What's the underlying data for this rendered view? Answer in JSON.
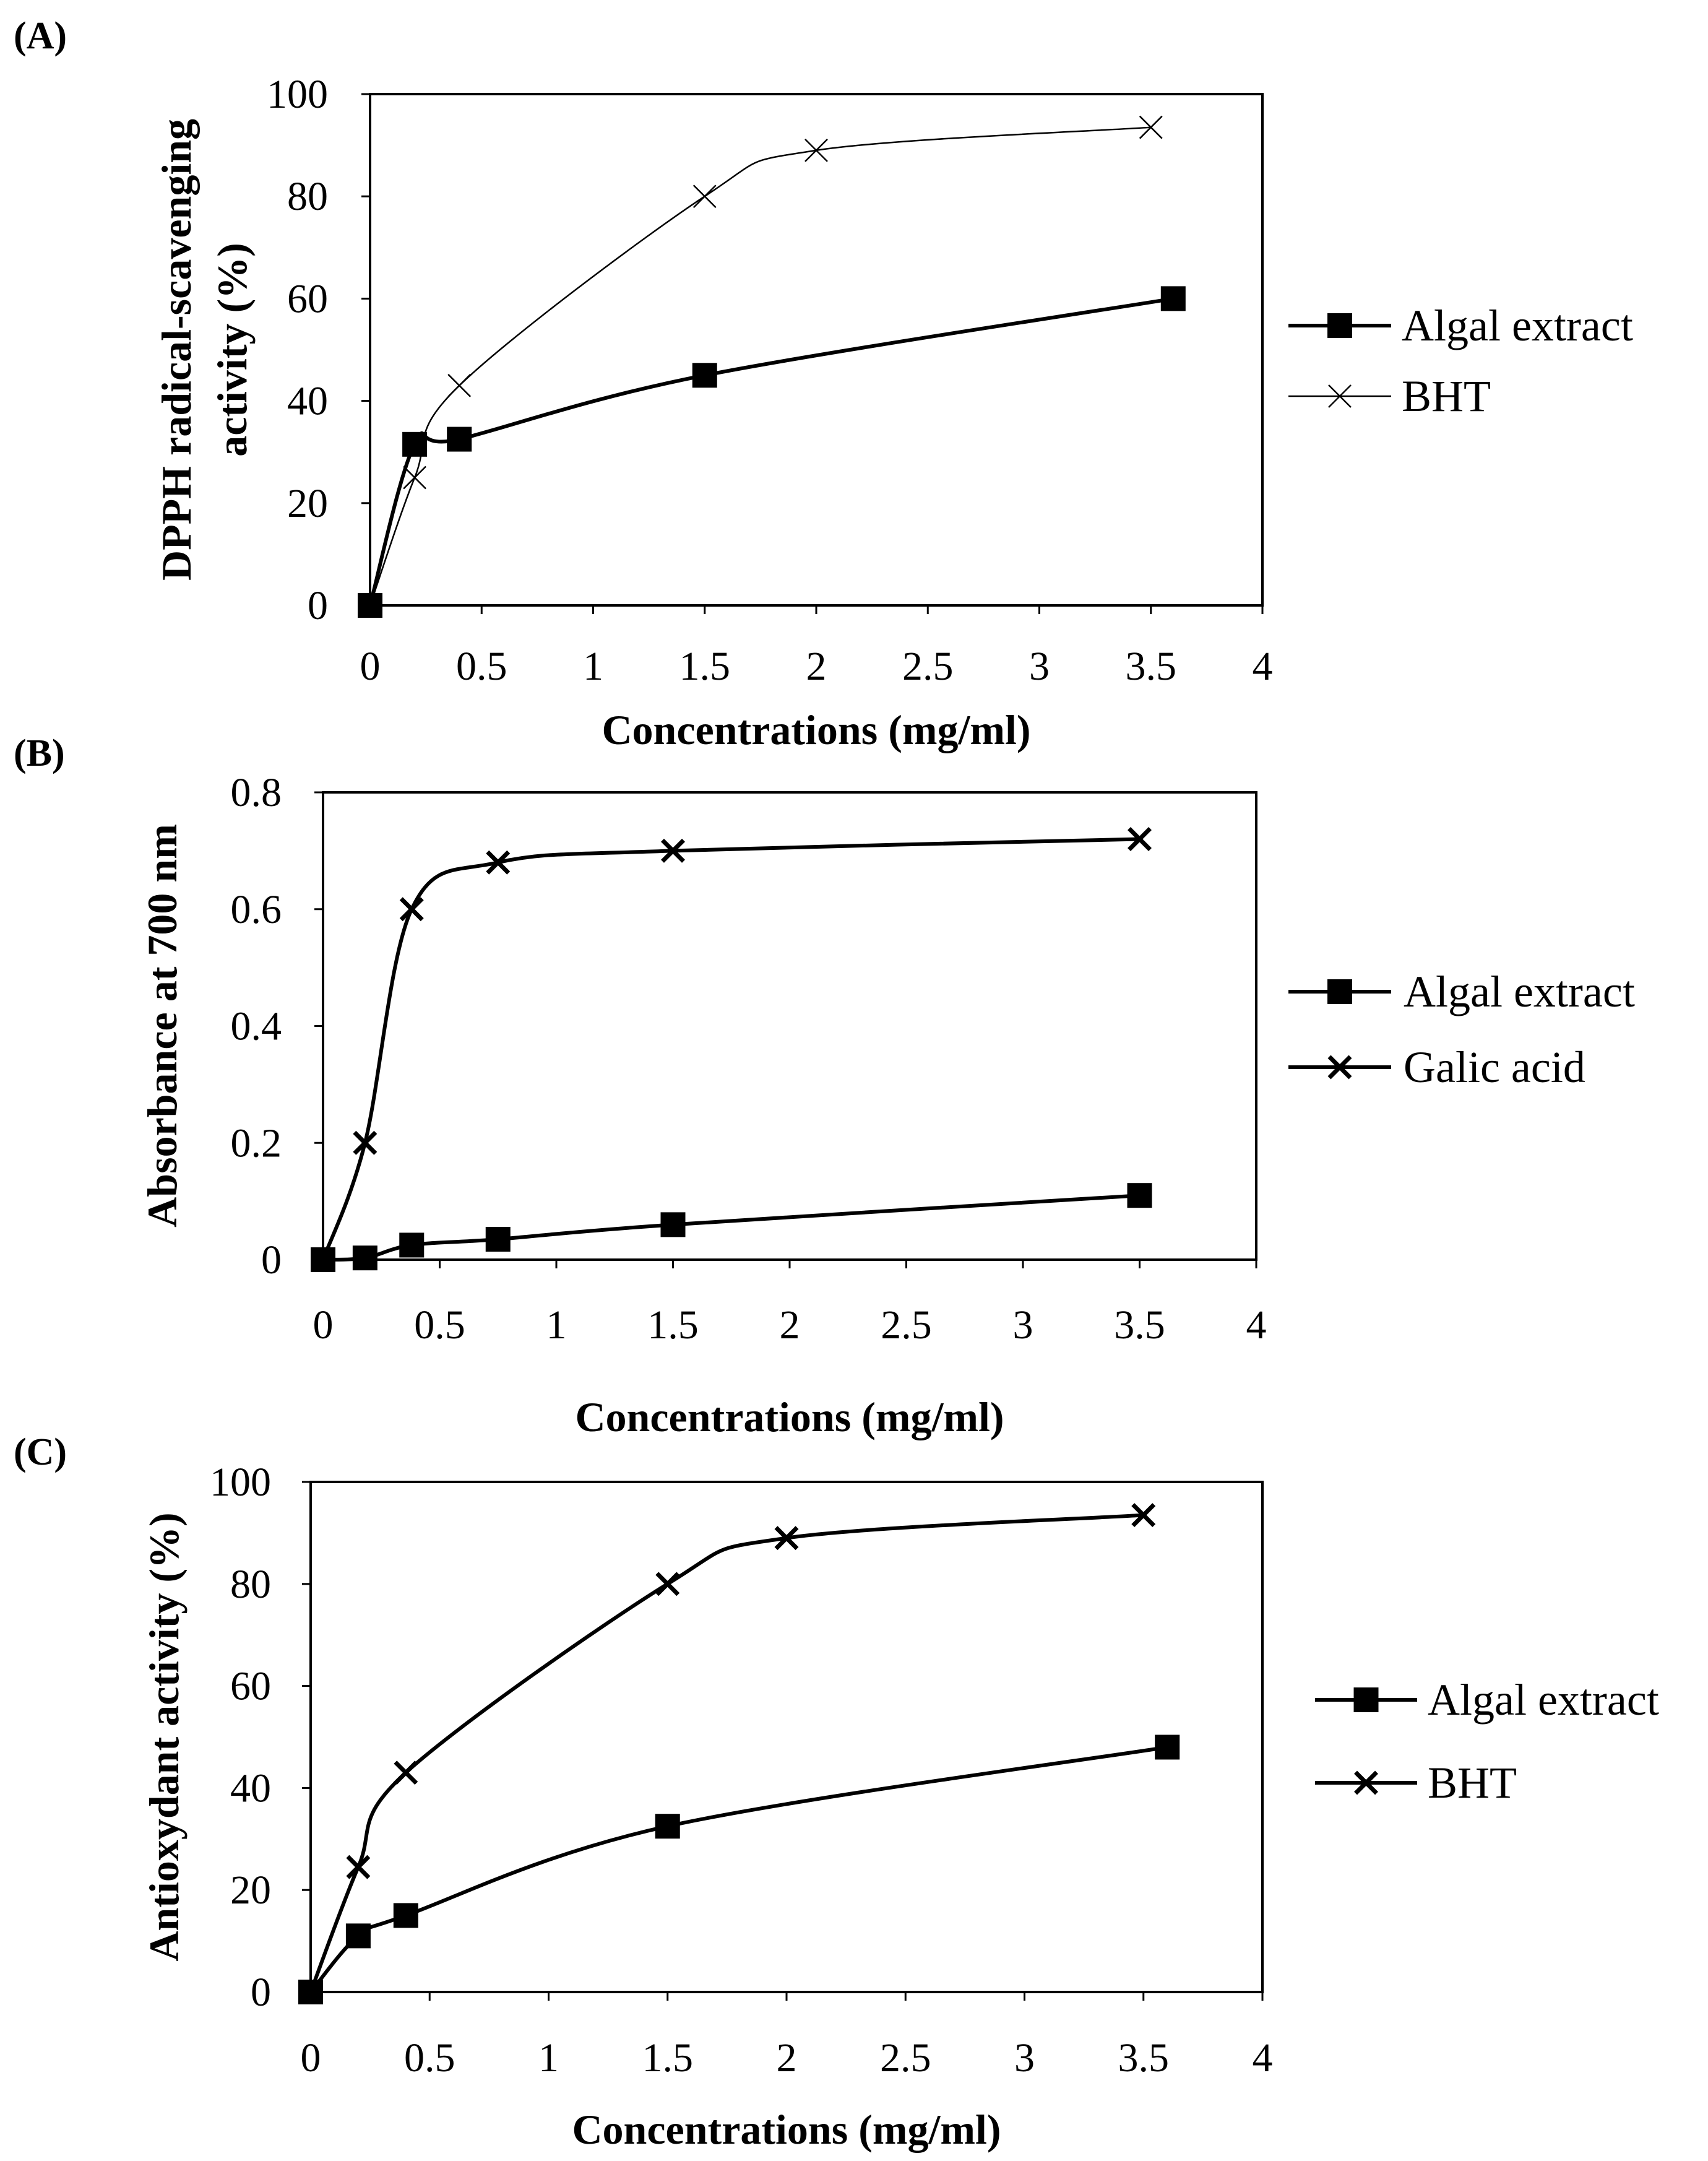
{
  "panel_labels": [
    "(A)",
    "(B)",
    "(C)"
  ],
  "chart_data": [
    {
      "type": "line",
      "panel": "(A)",
      "title": "",
      "xlabel": "Concentrations (mg/ml)",
      "ylabel_lines": [
        "DPPH radical-scavenging",
        "activity (%)"
      ],
      "xlim": [
        0,
        4
      ],
      "ylim": [
        0,
        100
      ],
      "xticks": [
        0,
        0.5,
        1,
        1.5,
        2,
        2.5,
        3,
        3.5,
        4
      ],
      "xtick_labels": [
        "0",
        "0.5",
        "1",
        "1.5",
        "2",
        "2.5",
        "3",
        "3.5",
        "4"
      ],
      "yticks": [
        0,
        20,
        40,
        60,
        80,
        100
      ],
      "ytick_labels": [
        "0",
        "20",
        "40",
        "60",
        "80",
        "100"
      ],
      "grid": false,
      "legend_position": "right",
      "series": [
        {
          "name": "Algal extract",
          "marker": "square",
          "line": "thick",
          "x": [
            0,
            0.2,
            0.4,
            1.5,
            3.6
          ],
          "y": [
            0,
            31.5,
            32.5,
            45,
            60
          ]
        },
        {
          "name": "BHT",
          "marker": "x-thin",
          "line": "thin",
          "x": [
            0,
            0.2,
            0.4,
            1.5,
            2,
            3.5
          ],
          "y": [
            0,
            25,
            43,
            80,
            89,
            93.5
          ]
        }
      ]
    },
    {
      "type": "line",
      "panel": "(B)",
      "title": "",
      "xlabel": "Concentrations (mg/ml)",
      "ylabel_lines": [
        "Absorbance at 700 nm"
      ],
      "xlim": [
        0,
        4
      ],
      "ylim": [
        0,
        0.8
      ],
      "xticks": [
        0,
        0.5,
        1,
        1.5,
        2,
        2.5,
        3,
        3.5,
        4
      ],
      "xtick_labels": [
        "0",
        "0.5",
        "1",
        "1.5",
        "2",
        "2.5",
        "3",
        "3.5",
        "4"
      ],
      "yticks": [
        0,
        0.2,
        0.4,
        0.6,
        0.8
      ],
      "ytick_labels": [
        "0",
        "0.2",
        "0.4",
        "0.6",
        "0.8"
      ],
      "grid": false,
      "legend_position": "right",
      "series": [
        {
          "name": "Algal extract",
          "marker": "square",
          "line": "thick",
          "x": [
            0,
            0.18,
            0.38,
            0.75,
            1.5,
            3.5
          ],
          "y": [
            0,
            0.003,
            0.025,
            0.035,
            0.06,
            0.11
          ]
        },
        {
          "name": "Galic acid",
          "marker": "x-bold",
          "line": "thick",
          "x": [
            0,
            0.18,
            0.38,
            0.75,
            1.5,
            3.5
          ],
          "y": [
            0,
            0.2,
            0.6,
            0.68,
            0.7,
            0.72
          ]
        }
      ]
    },
    {
      "type": "line",
      "panel": "(C)",
      "title": "",
      "xlabel": "Concentrations (mg/ml)",
      "ylabel_lines": [
        "Antioxydant activity (%)"
      ],
      "xlim": [
        0,
        4
      ],
      "ylim": [
        0,
        100
      ],
      "xticks": [
        0,
        0.5,
        1,
        1.5,
        2,
        2.5,
        3,
        3.5,
        4
      ],
      "xtick_labels": [
        "0",
        "0.5",
        "1",
        "1.5",
        "2",
        "2.5",
        "3",
        "3.5",
        "4"
      ],
      "yticks": [
        0,
        20,
        40,
        60,
        80,
        100
      ],
      "ytick_labels": [
        "0",
        "20",
        "40",
        "60",
        "80",
        "100"
      ],
      "grid": false,
      "legend_position": "right",
      "series": [
        {
          "name": "Algal extract",
          "marker": "square",
          "line": "thick",
          "x": [
            0,
            0.2,
            0.4,
            1.5,
            3.6
          ],
          "y": [
            0,
            11,
            15,
            32.5,
            48
          ]
        },
        {
          "name": "BHT",
          "marker": "x-bold",
          "line": "thick",
          "x": [
            0,
            0.2,
            0.4,
            1.5,
            2,
            3.5
          ],
          "y": [
            0,
            24.5,
            43,
            80,
            89,
            93.5
          ]
        }
      ]
    }
  ]
}
